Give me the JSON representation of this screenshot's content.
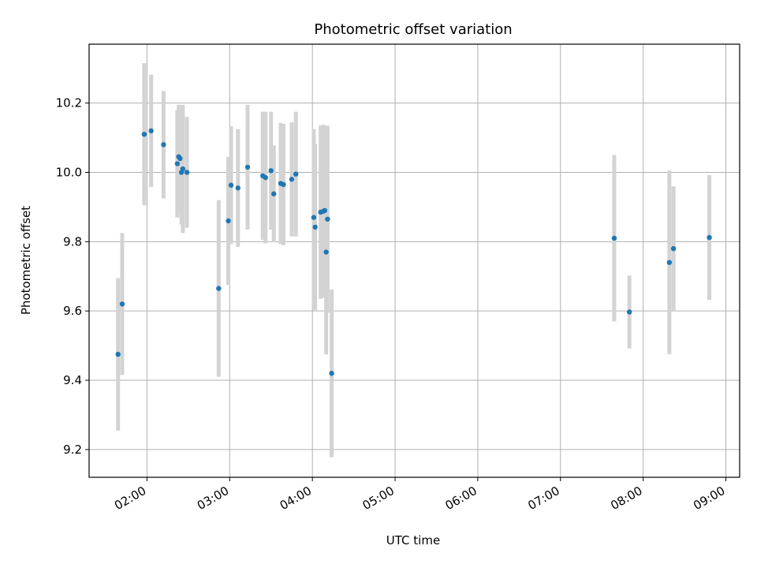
{
  "chart_data": {
    "type": "scatter",
    "title": "Photometric offset variation",
    "xlabel": "UTC time",
    "ylabel": "Photometric offset",
    "x_axis": "time",
    "xlim": [
      "01:18",
      "09:10"
    ],
    "ylim": [
      9.12,
      10.37
    ],
    "grid": true,
    "x_ticks": [
      "02:00",
      "03:00",
      "04:00",
      "05:00",
      "06:00",
      "07:00",
      "08:00",
      "09:00"
    ],
    "y_ticks": [
      "9.2",
      "9.4",
      "9.6",
      "9.8",
      "10.0",
      "10.2"
    ],
    "point_color": "#1f77b4",
    "errorbar_color": "#d3d3d3",
    "series": [
      {
        "points": [
          {
            "time": "01:39",
            "y": 9.475,
            "err": 0.22
          },
          {
            "time": "01:42",
            "y": 9.62,
            "err": 0.205
          },
          {
            "time": "01:58",
            "y": 10.11,
            "err": 0.205
          },
          {
            "time": "02:03",
            "y": 10.12,
            "err": 0.162
          },
          {
            "time": "02:12",
            "y": 10.08,
            "err": 0.155
          },
          {
            "time": "02:22",
            "y": 10.025,
            "err": 0.155
          },
          {
            "time": "02:23",
            "y": 10.045,
            "err": 0.15
          },
          {
            "time": "02:24",
            "y": 10.04,
            "err": 0.155
          },
          {
            "time": "02:25",
            "y": 10.0,
            "err": 0.15
          },
          {
            "time": "02:26",
            "y": 10.01,
            "err": 0.185
          },
          {
            "time": "02:29",
            "y": 10.0,
            "err": 0.16
          },
          {
            "time": "02:52",
            "y": 9.665,
            "err": 0.255
          },
          {
            "time": "02:59",
            "y": 9.86,
            "err": 0.185
          },
          {
            "time": "03:01",
            "y": 9.963,
            "err": 0.17
          },
          {
            "time": "03:06",
            "y": 9.955,
            "err": 0.17
          },
          {
            "time": "03:13",
            "y": 10.015,
            "err": 0.18
          },
          {
            "time": "03:24",
            "y": 9.99,
            "err": 0.185
          },
          {
            "time": "03:26",
            "y": 9.985,
            "err": 0.19
          },
          {
            "time": "03:30",
            "y": 10.005,
            "err": 0.17
          },
          {
            "time": "03:32",
            "y": 9.938,
            "err": 0.14
          },
          {
            "time": "03:37",
            "y": 9.968,
            "err": 0.175
          },
          {
            "time": "03:39",
            "y": 9.965,
            "err": 0.175
          },
          {
            "time": "03:45",
            "y": 9.98,
            "err": 0.165
          },
          {
            "time": "03:48",
            "y": 9.995,
            "err": 0.18
          },
          {
            "time": "04:01",
            "y": 9.87,
            "err": 0.255
          },
          {
            "time": "04:02",
            "y": 9.842,
            "err": 0.24
          },
          {
            "time": "04:06",
            "y": 9.885,
            "err": 0.25
          },
          {
            "time": "04:08",
            "y": 9.888,
            "err": 0.25
          },
          {
            "time": "04:09",
            "y": 9.89,
            "err": 0.245
          },
          {
            "time": "04:10",
            "y": 9.77,
            "err": 0.295
          },
          {
            "time": "04:11",
            "y": 9.865,
            "err": 0.27
          },
          {
            "time": "04:14",
            "y": 9.42,
            "err": 0.242
          },
          {
            "time": "07:39",
            "y": 9.81,
            "err": 0.24
          },
          {
            "time": "07:50",
            "y": 9.597,
            "err": 0.105
          },
          {
            "time": "08:19",
            "y": 9.74,
            "err": 0.265
          },
          {
            "time": "08:22",
            "y": 9.78,
            "err": 0.18
          },
          {
            "time": "08:48",
            "y": 9.812,
            "err": 0.18
          }
        ]
      }
    ]
  }
}
